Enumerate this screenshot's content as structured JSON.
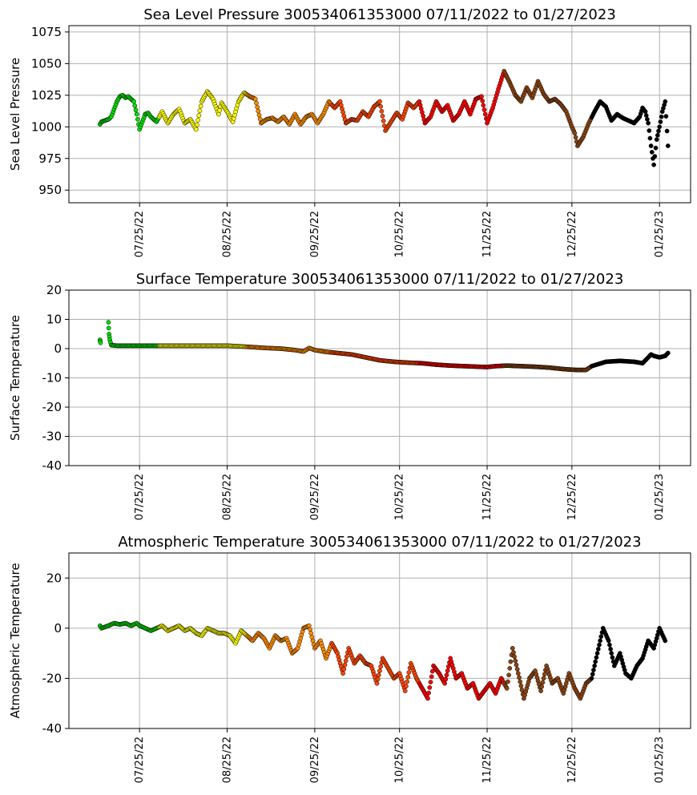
{
  "colors": {
    "2022-07": "#00e000",
    "2022-08": "#ffff00",
    "2022-09": "#ff8c00",
    "2022-10": "#ff4500",
    "2022-11": "#ff0000",
    "2022-12": "#8b4513",
    "2023-01": "#000000"
  },
  "chart_data": [
    {
      "type": "scatter",
      "title": "Sea Level Pressure 300534061353000  07/11/2022 to 01/27/2023",
      "xlabel": "",
      "ylabel": "Sea Level Pressure",
      "xlim_days": [
        -25,
        195
      ],
      "xticks": [
        0,
        31,
        62,
        92,
        123,
        153,
        184
      ],
      "xtick_labels": [
        "07/25/22",
        "08/25/22",
        "09/25/22",
        "10/25/22",
        "11/25/22",
        "12/25/22",
        "01/25/23"
      ],
      "ylim": [
        940,
        1080
      ],
      "yticks": [
        950,
        975,
        1000,
        1025,
        1050,
        1075
      ],
      "grid": true,
      "x_days": [
        -14,
        -13.5,
        -11,
        -10,
        -8,
        -7,
        -6,
        -5,
        -4,
        -3,
        -2,
        -1,
        0,
        2,
        3,
        4,
        6,
        8,
        10,
        12,
        14,
        16,
        18,
        20,
        22,
        24,
        26,
        28,
        29,
        31,
        33,
        35,
        37,
        39,
        41,
        43,
        45,
        47,
        49,
        51,
        53,
        55,
        57,
        59,
        61,
        63,
        65,
        67,
        69,
        71,
        73,
        75,
        77,
        79,
        81,
        83,
        85,
        87,
        89,
        91,
        93,
        95,
        97,
        99,
        101,
        103,
        105,
        107,
        109,
        111,
        113,
        115,
        117,
        119,
        121,
        123,
        125,
        127,
        129,
        131,
        133,
        135,
        137,
        139,
        141,
        143,
        145,
        147,
        149,
        151,
        153,
        154,
        155,
        157,
        159,
        161,
        163,
        165,
        167,
        169,
        171,
        173,
        175,
        177,
        178,
        179,
        180,
        181,
        182,
        183,
        184,
        185,
        186,
        187
      ],
      "values": [
        1002,
        1004,
        1006,
        1008,
        1020,
        1024,
        1025,
        1023,
        1024,
        1022,
        1020,
        1010,
        998,
        1010,
        1011,
        1008,
        1004,
        1012,
        1003,
        1010,
        1014,
        1003,
        1006,
        998,
        1020,
        1028,
        1022,
        1010,
        1019,
        1012,
        1004,
        1020,
        1027,
        1024,
        1022,
        1003,
        1006,
        1007,
        1004,
        1008,
        1002,
        1010,
        1002,
        1008,
        1010,
        1003,
        1010,
        1020,
        1015,
        1020,
        1003,
        1006,
        1005,
        1012,
        1008,
        1016,
        1020,
        997,
        1004,
        1011,
        1006,
        1019,
        1015,
        1020,
        1003,
        1008,
        1020,
        1012,
        1017,
        1005,
        1010,
        1020,
        1010,
        1022,
        1024,
        1003,
        1015,
        1030,
        1044,
        1035,
        1025,
        1020,
        1031,
        1023,
        1036,
        1026,
        1020,
        1022,
        1018,
        1012,
        1000,
        995,
        985,
        992,
        1003,
        1012,
        1020,
        1016,
        1005,
        1010,
        1007,
        1005,
        1003,
        1008,
        1015,
        1012,
        1003,
        985,
        970,
        990,
        1000,
        1012,
        1020,
        985
      ]
    },
    {
      "type": "scatter",
      "title": "Surface Temperature 300534061353000  07/11/2022 to 01/27/2023",
      "xlabel": "",
      "ylabel": "Surface Temperature",
      "xlim_days": [
        -25,
        195
      ],
      "xticks": [
        0,
        31,
        62,
        92,
        123,
        153,
        184
      ],
      "xtick_labels": [
        "07/25/22",
        "08/25/22",
        "09/25/22",
        "10/25/22",
        "11/25/22",
        "12/25/22",
        "01/25/23"
      ],
      "ylim": [
        -40,
        20
      ],
      "yticks": [
        -40,
        -30,
        -20,
        -10,
        0,
        10,
        20
      ],
      "grid": true,
      "x_days": [
        -14,
        -13.8,
        -11,
        -10.8,
        -10.5,
        -10,
        -8,
        -5,
        0,
        5,
        10,
        15,
        20,
        25,
        31,
        35,
        40,
        45,
        50,
        55,
        58,
        60,
        62,
        65,
        70,
        75,
        80,
        85,
        90,
        95,
        100,
        105,
        110,
        115,
        120,
        123,
        126,
        130,
        135,
        140,
        145,
        150,
        153,
        155,
        158,
        160,
        165,
        170,
        175,
        178,
        180,
        181,
        182,
        184,
        186,
        187
      ],
      "values": [
        3,
        2,
        9,
        5,
        3,
        1.2,
        1,
        1,
        1,
        1,
        1,
        1,
        1,
        1,
        1,
        0.8,
        0.5,
        0.2,
        0,
        -0.5,
        -1,
        0.2,
        -0.5,
        -1,
        -1.5,
        -2,
        -3,
        -4,
        -4.5,
        -4.8,
        -5,
        -5.5,
        -5.8,
        -6,
        -6.2,
        -6.3,
        -6,
        -5.8,
        -6,
        -6.2,
        -6.5,
        -7,
        -7.2,
        -7.3,
        -7.3,
        -6,
        -4.5,
        -4.2,
        -4.5,
        -5,
        -3,
        -2,
        -2.5,
        -3,
        -2.5,
        -1.5
      ]
    },
    {
      "type": "scatter",
      "title": "Atmospheric Temperature 300534061353000  07/11/2022 to 01/27/2023",
      "xlabel": "",
      "ylabel": "Atmospheric Temperature",
      "xlim_days": [
        -25,
        195
      ],
      "xticks": [
        0,
        31,
        62,
        92,
        123,
        153,
        184
      ],
      "xtick_labels": [
        "07/25/22",
        "08/25/22",
        "09/25/22",
        "10/25/22",
        "11/25/22",
        "12/25/22",
        "01/25/23"
      ],
      "ylim": [
        -40,
        30
      ],
      "yticks": [
        -40,
        -20,
        0,
        20
      ],
      "grid": true,
      "x_days": [
        -14,
        -13.5,
        -11,
        -9,
        -7,
        -5,
        -3,
        -1,
        0,
        2,
        4,
        6,
        8,
        10,
        12,
        14,
        16,
        18,
        20,
        22,
        24,
        26,
        28,
        30,
        32,
        34,
        36,
        38,
        40,
        42,
        44,
        46,
        48,
        50,
        52,
        54,
        56,
        58,
        60,
        62,
        64,
        66,
        68,
        70,
        72,
        74,
        76,
        78,
        80,
        82,
        84,
        86,
        88,
        90,
        92,
        94,
        96,
        98,
        100,
        102,
        104,
        106,
        108,
        110,
        112,
        114,
        116,
        118,
        120,
        122,
        124,
        126,
        128,
        130,
        132,
        134,
        136,
        138,
        140,
        142,
        144,
        146,
        148,
        150,
        152,
        154,
        156,
        158,
        160,
        162,
        164,
        166,
        168,
        170,
        172,
        174,
        176,
        178,
        180,
        182,
        184,
        186
      ],
      "values": [
        1,
        0,
        1,
        2,
        1.5,
        2,
        1,
        2,
        1,
        0,
        -1,
        0,
        1,
        -1,
        0,
        1,
        -1,
        0,
        -2,
        -3,
        0,
        -1,
        -2,
        -2,
        -3,
        -6,
        -1,
        -3,
        -5,
        -2,
        -4,
        -8,
        -3,
        -5,
        -4,
        -10,
        -8,
        0,
        1,
        -8,
        -5,
        -12,
        -6,
        -10,
        -18,
        -8,
        -14,
        -11,
        -14,
        -15,
        -22,
        -12,
        -16,
        -20,
        -18,
        -25,
        -14,
        -20,
        -24,
        -28,
        -15,
        -18,
        -22,
        -12,
        -20,
        -18,
        -24,
        -22,
        -28,
        -25,
        -22,
        -26,
        -20,
        -24,
        -8,
        -18,
        -28,
        -20,
        -17,
        -25,
        -15,
        -22,
        -20,
        -26,
        -18,
        -24,
        -28,
        -22,
        -20,
        -10,
        0,
        -5,
        -15,
        -10,
        -18,
        -20,
        -15,
        -12,
        -5,
        -8,
        0,
        -5
      ]
    }
  ]
}
